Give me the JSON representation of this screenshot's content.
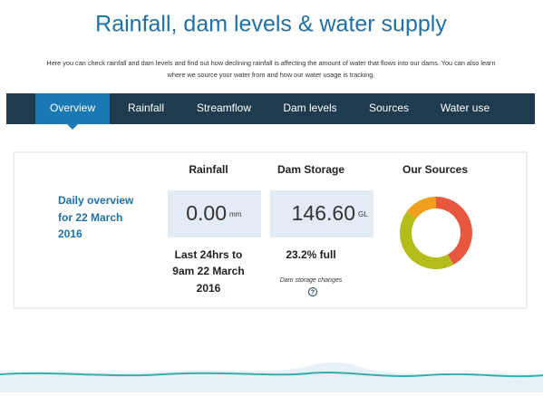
{
  "header": {
    "title": "Rainfall, dam levels & water supply",
    "intro": [
      "Here you can check rainfall and dam levels and find out how declining rainfall is affecting the amount of water that flows into our dams. You can also learn",
      "where we source your water from and how our water usage is tracking."
    ]
  },
  "nav": {
    "tabs": [
      "Overview",
      "Rainfall",
      "Streamflow",
      "Dam levels",
      "Sources",
      "Water use"
    ],
    "active": 0
  },
  "overview": {
    "heading": [
      "Daily overview",
      "for 22 March",
      "2016"
    ],
    "rainfall": {
      "title": "Rainfall",
      "value": "0.00",
      "unit": "mm",
      "note": [
        "Last 24hrs to",
        "9am 22 March",
        "2016"
      ]
    },
    "dam": {
      "title": "Dam Storage",
      "value": "146.60",
      "unit": "GL",
      "note": "23.2% full",
      "link": "Dam storage changes",
      "help": "?"
    },
    "sources": {
      "title": "Our Sources",
      "chart_data": {
        "type": "pie",
        "values": [
          42,
          43,
          15
        ],
        "colors": [
          "#e8573f",
          "#b5bd1a",
          "#f0a01c"
        ]
      }
    }
  }
}
